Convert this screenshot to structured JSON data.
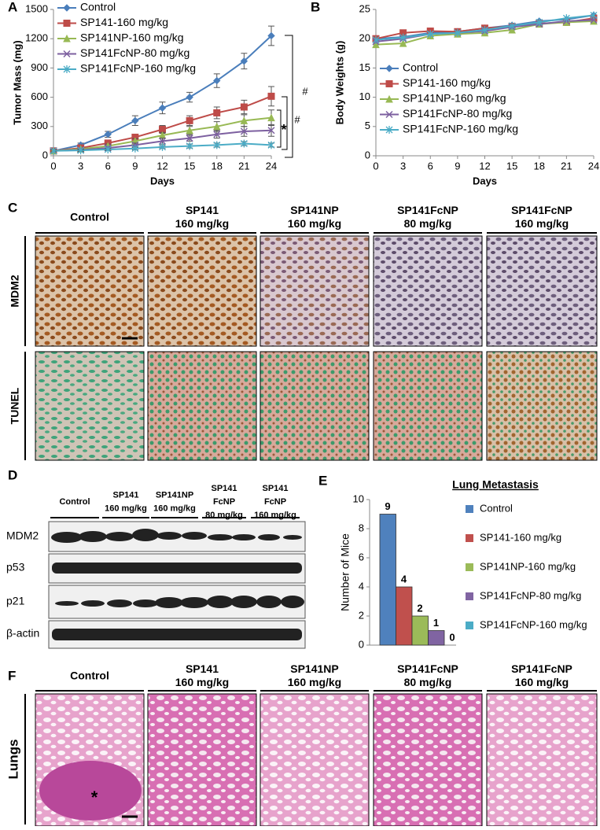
{
  "panel_labels": [
    "A",
    "B",
    "C",
    "D",
    "E",
    "F"
  ],
  "chart_data": [
    {
      "type": "line",
      "ylabel": "Tumor Mass (mg)",
      "xlabel": "Days",
      "x": [
        0,
        3,
        6,
        9,
        12,
        15,
        18,
        21,
        24
      ],
      "xlim": [
        0,
        24
      ],
      "xticks": [
        0,
        3,
        6,
        9,
        12,
        15,
        18,
        21,
        24
      ],
      "ylim": [
        0,
        1500
      ],
      "yticks": [
        0,
        300,
        600,
        900,
        1200,
        1500
      ],
      "legend": "upper left",
      "annotations": [
        "#",
        "#",
        "*"
      ],
      "series": [
        {
          "name": "Control",
          "color": "#4a7ebb",
          "marker": "diamond",
          "values": [
            50,
            110,
            220,
            360,
            490,
            600,
            770,
            970,
            1230
          ],
          "errors": [
            10,
            20,
            30,
            50,
            60,
            50,
            70,
            80,
            100
          ]
        },
        {
          "name": "SP141-160 mg/kg",
          "color": "#be4b48",
          "marker": "square",
          "values": [
            50,
            80,
            130,
            190,
            270,
            360,
            440,
            500,
            610
          ],
          "errors": [
            10,
            15,
            25,
            30,
            40,
            50,
            60,
            70,
            100
          ]
        },
        {
          "name": "SP141NP-160 mg/kg",
          "color": "#98b954",
          "marker": "triangle",
          "values": [
            50,
            70,
            100,
            150,
            210,
            260,
            300,
            360,
            390
          ],
          "errors": [
            10,
            10,
            20,
            25,
            30,
            40,
            50,
            60,
            80
          ]
        },
        {
          "name": "SP141FcNP-80 mg/kg",
          "color": "#7d60a0",
          "marker": "x",
          "values": [
            50,
            60,
            80,
            110,
            150,
            180,
            220,
            250,
            260
          ],
          "errors": [
            10,
            10,
            15,
            20,
            30,
            30,
            40,
            50,
            60
          ]
        },
        {
          "name": "SP141FcNP-160 mg/kg",
          "color": "#4bacc6",
          "marker": "star",
          "values": [
            50,
            55,
            65,
            75,
            90,
            100,
            110,
            125,
            110
          ],
          "errors": [
            10,
            10,
            10,
            15,
            15,
            20,
            20,
            20,
            20
          ]
        }
      ]
    },
    {
      "type": "line",
      "ylabel": "Body Weights (g)",
      "xlabel": "Days",
      "x": [
        0,
        3,
        6,
        9,
        12,
        15,
        18,
        21,
        24
      ],
      "xlim": [
        0,
        24
      ],
      "xticks": [
        0,
        3,
        6,
        9,
        12,
        15,
        18,
        21,
        24
      ],
      "ylim": [
        0,
        25
      ],
      "yticks": [
        0,
        5,
        10,
        15,
        20,
        25
      ],
      "legend": "lower right",
      "series": [
        {
          "name": "Control",
          "color": "#4a7ebb",
          "marker": "diamond",
          "values": [
            20,
            20.3,
            21,
            21.2,
            21.8,
            22.3,
            23,
            23.3,
            24
          ]
        },
        {
          "name": "SP141-160 mg/kg",
          "color": "#be4b48",
          "marker": "square",
          "values": [
            20,
            21,
            21.3,
            21.2,
            21.8,
            22.1,
            22.6,
            22.8,
            23.5
          ]
        },
        {
          "name": "SP141NP-160 mg/kg",
          "color": "#98b954",
          "marker": "triangle",
          "values": [
            19,
            19.2,
            20.5,
            20.8,
            21,
            21.5,
            22.5,
            22.8,
            23
          ]
        },
        {
          "name": "SP141FcNP-80 mg/kg",
          "color": "#7d60a0",
          "marker": "x",
          "values": [
            19.5,
            20,
            20.8,
            21,
            21.3,
            22,
            22.5,
            23,
            23.2
          ]
        },
        {
          "name": "SP141FcNP-160 mg/kg",
          "color": "#4bacc6",
          "marker": "star",
          "values": [
            19.8,
            20.2,
            20.8,
            21,
            21.5,
            22.2,
            22.8,
            23.5,
            24
          ]
        }
      ]
    },
    {
      "type": "bar",
      "title": "Lung Metastasis",
      "ylabel": "Number of Mice",
      "categories": [
        "Control",
        "SP141-160 mg/kg",
        "SP141NP-160 mg/kg",
        "SP141FcNP-80 mg/kg",
        "SP141FcNP-160 mg/kg"
      ],
      "values": [
        9,
        4,
        2,
        1,
        0
      ],
      "colors": [
        "#4f81bd",
        "#c0504d",
        "#9bbb59",
        "#8064a2",
        "#4bacc6"
      ],
      "ylim": [
        0,
        10
      ],
      "yticks": [
        0,
        2,
        4,
        6,
        8,
        10
      ]
    }
  ],
  "panel_c": {
    "columns": [
      [
        "Control"
      ],
      [
        "SP141",
        "160 mg/kg"
      ],
      [
        "SP141NP",
        "160 mg/kg"
      ],
      [
        "SP141FcNP",
        "80 mg/kg"
      ],
      [
        "SP141FcNP",
        "160 mg/kg"
      ]
    ],
    "rows": [
      "MDM2",
      "TUNEL"
    ]
  },
  "panel_d": {
    "columns": [
      [
        "Control"
      ],
      [
        "SP141",
        "160 mg/kg"
      ],
      [
        "SP141NP",
        "160 mg/kg"
      ],
      [
        "SP141",
        "FcNP",
        "80 mg/kg"
      ],
      [
        "SP141",
        "FcNP",
        "160 mg/kg"
      ]
    ],
    "rows": [
      "MDM2",
      "p53",
      "p21",
      "β-actin"
    ]
  },
  "panel_f": {
    "columns": [
      [
        "Control"
      ],
      [
        "SP141",
        "160 mg/kg"
      ],
      [
        "SP141NP",
        "160 mg/kg"
      ],
      [
        "SP141FcNP",
        "80 mg/kg"
      ],
      [
        "SP141FcNP",
        "160 mg/kg"
      ]
    ],
    "row": "Lungs",
    "marker": "*"
  }
}
